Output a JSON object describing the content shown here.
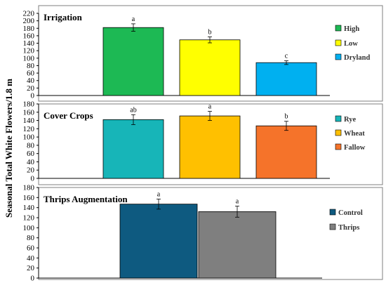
{
  "y_axis_label": "Seasonal Total White Flowers/1.8 m",
  "chart_data": [
    {
      "type": "bar",
      "title": "Irrigation",
      "ylim": [
        0,
        220
      ],
      "yticks": [
        0,
        20,
        40,
        60,
        80,
        100,
        120,
        140,
        160,
        180,
        200,
        220
      ],
      "categories": [
        "High",
        "Low",
        "Dryland"
      ],
      "values": [
        182,
        149,
        88
      ],
      "errors": [
        10,
        8,
        5
      ],
      "letters": [
        "a",
        "b",
        "c"
      ],
      "colors": [
        "#1db954",
        "#ffff00",
        "#00b0f0"
      ],
      "legend": [
        "High",
        "Low",
        "Dryland"
      ]
    },
    {
      "type": "bar",
      "title": "Cover Crops",
      "ylim": [
        0,
        180
      ],
      "yticks": [
        0,
        20,
        40,
        60,
        80,
        100,
        120,
        140,
        160,
        180
      ],
      "categories": [
        "Rye",
        "Wheat",
        "Fallow"
      ],
      "values": [
        142,
        151,
        127
      ],
      "errors": [
        12,
        11,
        11
      ],
      "letters": [
        "ab",
        "a",
        "b"
      ],
      "colors": [
        "#17b5b8",
        "#ffc000",
        "#f5732a"
      ],
      "legend": [
        "Rye",
        "Wheat",
        "Fallow"
      ]
    },
    {
      "type": "bar",
      "title": "Thrips Augmentation",
      "ylim": [
        0,
        180
      ],
      "yticks": [
        0,
        20,
        40,
        60,
        80,
        100,
        120,
        140,
        160,
        180
      ],
      "categories": [
        "Control",
        "Thrips"
      ],
      "values": [
        147,
        132
      ],
      "errors": [
        10,
        11
      ],
      "letters": [
        "a",
        "a"
      ],
      "colors": [
        "#0e5a80",
        "#7f7f7f"
      ],
      "legend": [
        "Control",
        "Thrips"
      ]
    }
  ]
}
